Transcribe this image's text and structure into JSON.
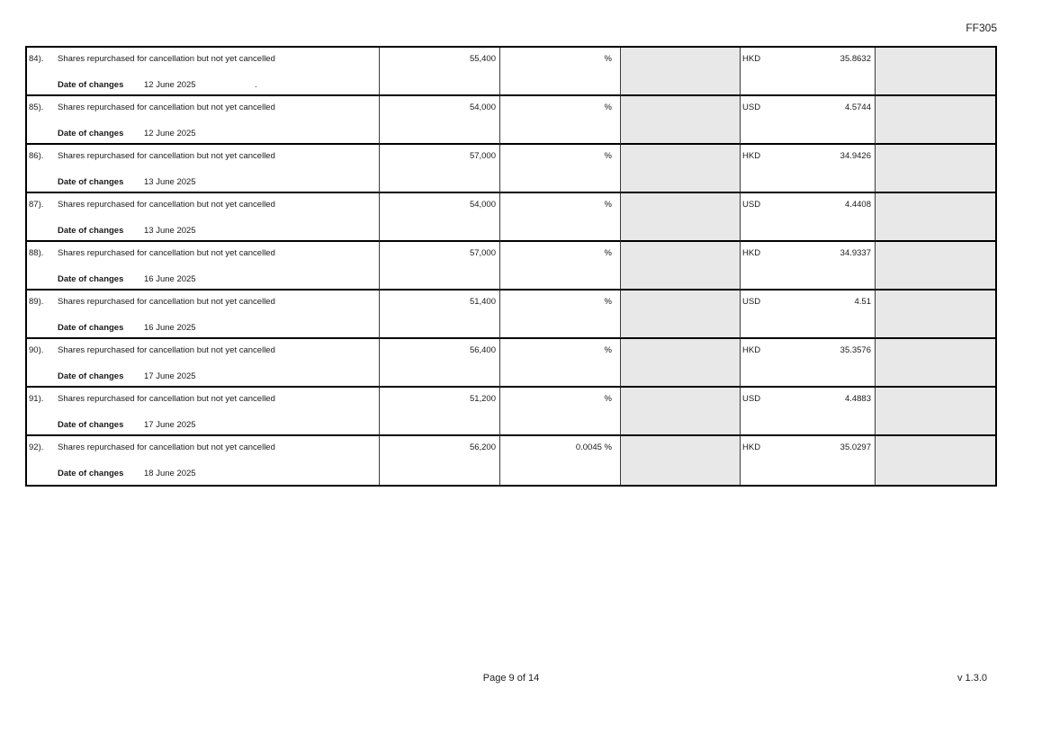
{
  "page": {
    "form_code": "FF305",
    "footer": {
      "page_indicator": "Page 9 of 14",
      "version": "v 1.3.0"
    }
  },
  "colors": {
    "shaded_cell": "#e8e8e8"
  },
  "table": {
    "rows": [
      {
        "num": "84).",
        "description": "Shares repurchased for cancellation but not yet cancelled",
        "date_label": "Date of changes",
        "date": "12 June 2025",
        "note": ".",
        "shares": "55,400",
        "percent": "%",
        "currency": "HKD",
        "price": "35.8632"
      },
      {
        "num": "85).",
        "description": "Shares repurchased for cancellation but not yet cancelled",
        "date_label": "Date of changes",
        "date": "12 June 2025",
        "note": "",
        "shares": "54,000",
        "percent": "%",
        "currency": "USD",
        "price": "4.5744"
      },
      {
        "num": "86).",
        "description": "Shares repurchased for cancellation but not yet cancelled",
        "date_label": "Date of changes",
        "date": "13 June 2025",
        "note": "",
        "shares": "57,000",
        "percent": "%",
        "currency": "HKD",
        "price": "34.9426"
      },
      {
        "num": "87).",
        "description": "Shares repurchased for cancellation but not yet cancelled",
        "date_label": "Date of changes",
        "date": "13 June 2025",
        "note": "",
        "shares": "54,000",
        "percent": "%",
        "currency": "USD",
        "price": "4.4408"
      },
      {
        "num": "88).",
        "description": "Shares repurchased for cancellation but not yet cancelled",
        "date_label": "Date of changes",
        "date": "16 June 2025",
        "note": "",
        "shares": "57,000",
        "percent": "%",
        "currency": "HKD",
        "price": "34.9337"
      },
      {
        "num": "89).",
        "description": "Shares repurchased for cancellation but not yet cancelled",
        "date_label": "Date of changes",
        "date": "16 June 2025",
        "note": "",
        "shares": "51,400",
        "percent": "%",
        "currency": "USD",
        "price": "4.51"
      },
      {
        "num": "90).",
        "description": "Shares repurchased for cancellation but not yet cancelled",
        "date_label": "Date of changes",
        "date": "17 June 2025",
        "note": "",
        "shares": "56,400",
        "percent": "%",
        "currency": "HKD",
        "price": "35.3576"
      },
      {
        "num": "91).",
        "description": "Shares repurchased for cancellation but not yet cancelled",
        "date_label": "Date of changes",
        "date": "17 June 2025",
        "note": "",
        "shares": "51,200",
        "percent": "%",
        "currency": "USD",
        "price": "4.4883"
      },
      {
        "num": "92).",
        "description": "Shares repurchased for cancellation but not yet cancelled",
        "date_label": "Date of changes",
        "date": "18 June 2025",
        "note": "",
        "shares": "56,200",
        "percent": "0.0045 %",
        "currency": "HKD",
        "price": "35.0297"
      }
    ]
  }
}
